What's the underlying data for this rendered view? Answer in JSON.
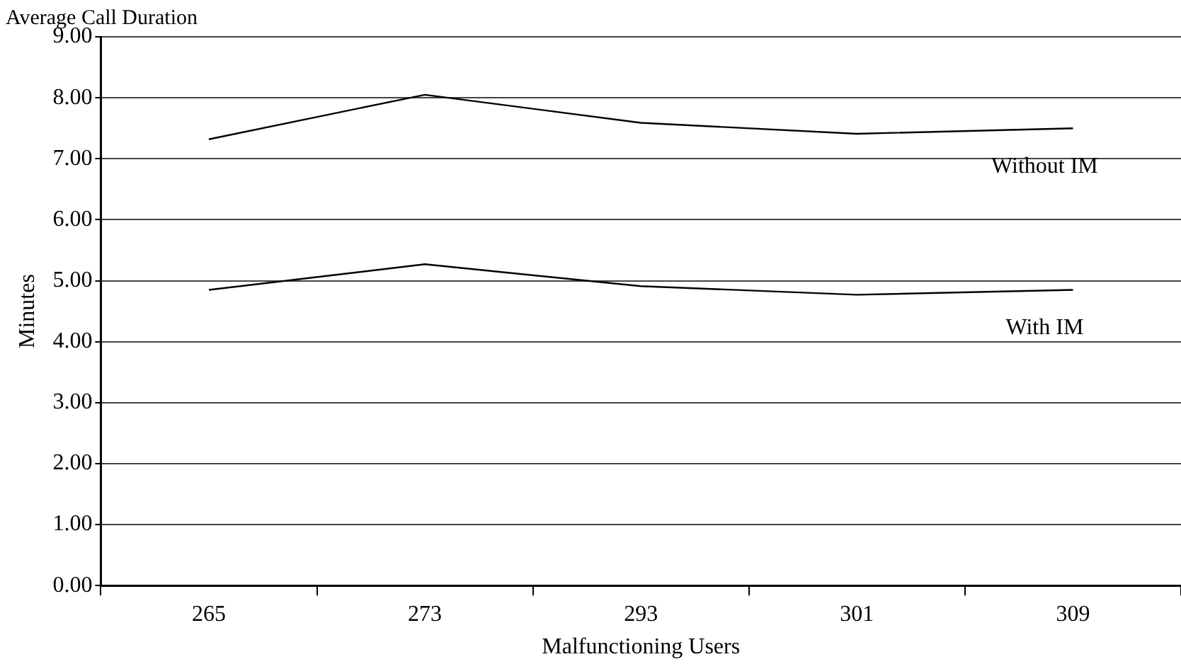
{
  "chart_data": {
    "type": "line",
    "title": "Average Call Duration",
    "xlabel": "Malfunctioning Users",
    "ylabel": "Minutes",
    "categories": [
      "265",
      "273",
      "293",
      "301",
      "309"
    ],
    "series": [
      {
        "name": "Without IM",
        "color": "#000000",
        "values": [
          7.32,
          8.05,
          7.59,
          7.41,
          7.5
        ]
      },
      {
        "name": "With IM",
        "color": "#000000",
        "values": [
          4.85,
          5.27,
          4.91,
          4.77,
          4.85
        ]
      }
    ],
    "ylim": [
      0,
      9
    ],
    "yticks": [
      {
        "value": 0,
        "label": "0.00"
      },
      {
        "value": 1,
        "label": "1.00"
      },
      {
        "value": 2,
        "label": "2.00"
      },
      {
        "value": 3,
        "label": "3.00"
      },
      {
        "value": 4,
        "label": "4.00"
      },
      {
        "value": 5,
        "label": "5.00"
      },
      {
        "value": 6,
        "label": "6.00"
      },
      {
        "value": 7,
        "label": "7.00"
      },
      {
        "value": 8,
        "label": "8.00"
      },
      {
        "value": 9,
        "label": "9.00"
      }
    ],
    "grid": "y",
    "legend": false,
    "marker": "none",
    "line_style": "solid"
  }
}
